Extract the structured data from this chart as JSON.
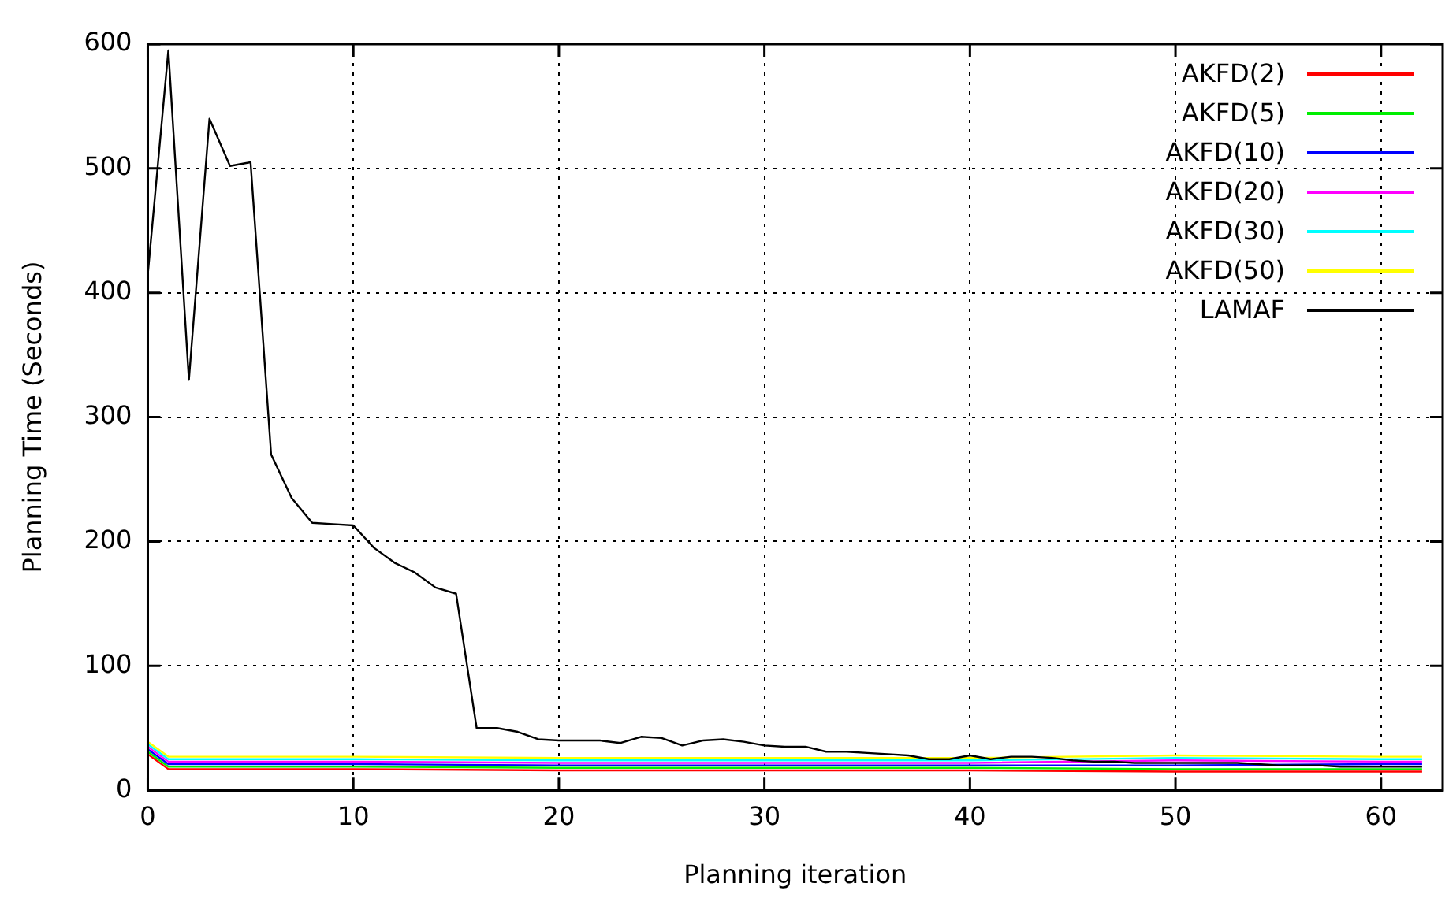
{
  "chart_data": {
    "type": "line",
    "xlabel": "Planning iteration",
    "ylabel": "Planning Time (Seconds)",
    "xlim": [
      0,
      63
    ],
    "ylim": [
      0,
      600
    ],
    "xticks": [
      0,
      10,
      20,
      30,
      40,
      50,
      60
    ],
    "yticks": [
      0,
      100,
      200,
      300,
      400,
      500,
      600
    ],
    "grid": true,
    "legend": "top right",
    "marker": "none",
    "line_style": "solid",
    "series": [
      {
        "name": "AKFD(2)",
        "color": "#ff0000",
        "x": [
          0,
          1,
          10,
          20,
          30,
          40,
          50,
          60,
          62
        ],
        "values": [
          29,
          17,
          17,
          16,
          16,
          16,
          15,
          15,
          15
        ]
      },
      {
        "name": "AKFD(5)",
        "color": "#00ee00",
        "x": [
          0,
          1,
          10,
          20,
          30,
          40,
          50,
          60,
          62
        ],
        "values": [
          31,
          19,
          19,
          18,
          18,
          18,
          17,
          17,
          17
        ]
      },
      {
        "name": "AKFD(10)",
        "color": "#0000ff",
        "x": [
          0,
          1,
          10,
          20,
          30,
          40,
          50,
          60,
          62
        ],
        "values": [
          33,
          21,
          21,
          20,
          20,
          20,
          20,
          21,
          21
        ]
      },
      {
        "name": "AKFD(20)",
        "color": "#ff00ff",
        "x": [
          0,
          1,
          10,
          20,
          30,
          40,
          50,
          60,
          62
        ],
        "values": [
          35,
          23,
          23,
          22,
          22,
          22,
          24,
          23,
          23
        ]
      },
      {
        "name": "AKFD(30)",
        "color": "#00ffff",
        "x": [
          0,
          1,
          10,
          20,
          30,
          40,
          50,
          60,
          62
        ],
        "values": [
          37,
          25,
          25,
          24,
          24,
          24,
          26,
          25,
          25
        ]
      },
      {
        "name": "AKFD(50)",
        "color": "#ffff00",
        "x": [
          0,
          1,
          10,
          20,
          30,
          40,
          50,
          60,
          62
        ],
        "values": [
          39,
          27,
          27,
          26,
          26,
          26,
          28,
          27,
          27
        ]
      },
      {
        "name": "LAMAF",
        "color": "#000000",
        "x": [
          0,
          1,
          2,
          3,
          4,
          5,
          6,
          7,
          8,
          9,
          10,
          11,
          12,
          13,
          14,
          15,
          16,
          17,
          18,
          19,
          20,
          21,
          22,
          23,
          24,
          25,
          26,
          27,
          28,
          29,
          30,
          31,
          32,
          33,
          34,
          35,
          36,
          37,
          38,
          39,
          40,
          41,
          42,
          43,
          44,
          45,
          46,
          47,
          48,
          49,
          50,
          51,
          52,
          53,
          54,
          55,
          56,
          57,
          58,
          59,
          60,
          61,
          62
        ],
        "values": [
          415,
          595,
          330,
          540,
          502,
          505,
          270,
          235,
          215,
          214,
          213,
          195,
          183,
          175,
          163,
          158,
          50,
          50,
          47,
          41,
          40,
          40,
          40,
          38,
          43,
          42,
          36,
          40,
          41,
          39,
          36,
          35,
          35,
          31,
          31,
          30,
          29,
          28,
          25,
          25,
          28,
          25,
          27,
          27,
          26,
          24,
          23,
          23,
          22,
          22,
          22,
          22,
          22,
          22,
          21,
          20,
          20,
          20,
          19,
          19,
          19,
          19,
          19
        ]
      }
    ]
  }
}
